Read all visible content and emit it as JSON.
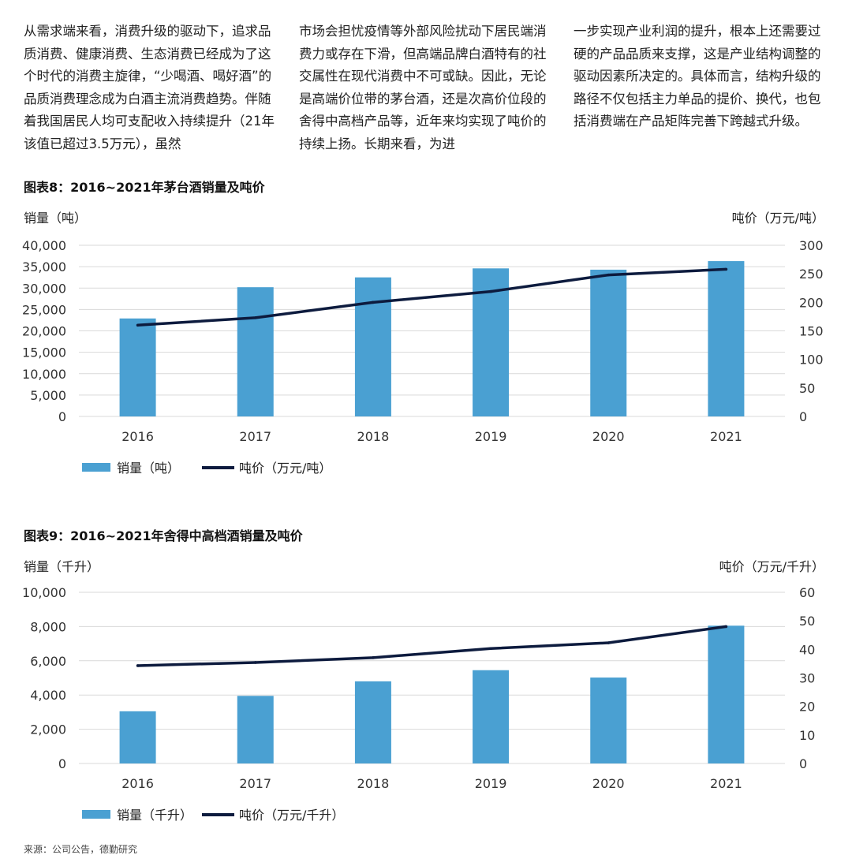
{
  "text_columns": [
    "从需求端来看，消费升级的驱动下，追求品质消费、健康消费、生态消费已经成为了这个时代的消费主旋律，“少喝酒、喝好酒”的品质消费理念成为白酒主流消费趋势。伴随着我国居民人均可支配收入持续提升（21年该值已超过3.5万元），虽然",
    "市场会担忧疫情等外部风险扰动下居民端消费力或存在下滑，但高端品牌白酒特有的社交属性在现代消费中不可或缺。因此，无论是高端价位带的茅台酒，还是次高价位段的舍得中高档产品等，近年来均实现了吨价的持续上扬。长期来看，为进",
    "一步实现产业利润的提升，根本上还需要过硬的产品品质来支撑，这是产业结构调整的驱动因素所决定的。具体而言，结构升级的路径不仅包括主力单品的提价、换代，也包括消费端在产品矩阵完善下跨越式升级。"
  ],
  "colors": {
    "bar": "#4aa0d2",
    "line": "#0d1b3e",
    "grid": "#d9d9d9"
  },
  "chart_data": [
    {
      "type": "bar",
      "title": "图表8：2016~2021年茅台酒销量及吨价",
      "categories": [
        "2016",
        "2017",
        "2018",
        "2019",
        "2020",
        "2021"
      ],
      "series": [
        {
          "name": "销量（吨）",
          "type": "bar",
          "axis": "left",
          "values": [
            22900,
            30200,
            32500,
            34600,
            34300,
            36300
          ]
        },
        {
          "name": "吨价（万元/吨）",
          "type": "line",
          "axis": "right",
          "values": [
            160,
            173,
            200,
            219,
            248,
            258
          ]
        }
      ],
      "ylabel": "销量（吨）",
      "y2label": "吨价（万元/吨）",
      "ylim": [
        0,
        40000
      ],
      "yticks": [
        0,
        5000,
        10000,
        15000,
        20000,
        25000,
        30000,
        35000,
        40000
      ],
      "yticklabels": [
        "0",
        "5,000",
        "10,000",
        "15,000",
        "20,000",
        "25,000",
        "30,000",
        "35,000",
        "40,000"
      ],
      "y2lim": [
        0,
        300
      ],
      "y2ticks": [
        0,
        50,
        100,
        150,
        200,
        250,
        300
      ],
      "y2ticklabels": [
        "0",
        "50",
        "100",
        "150",
        "200",
        "250",
        "300"
      ],
      "legend": [
        "销量（吨）",
        "吨价（万元/吨）"
      ]
    },
    {
      "type": "bar",
      "title": "图表9：2016~2021年舍得中高档酒销量及吨价",
      "categories": [
        "2016",
        "2017",
        "2018",
        "2019",
        "2020",
        "2021"
      ],
      "series": [
        {
          "name": "销量（千升）",
          "type": "bar",
          "axis": "left",
          "values": [
            3050,
            3950,
            4800,
            5450,
            5020,
            8050
          ]
        },
        {
          "name": "吨价（万元/千升）",
          "type": "line",
          "axis": "right",
          "values": [
            34.3,
            35.4,
            37.1,
            40.3,
            42.3,
            48.0
          ]
        }
      ],
      "ylabel": "销量（千升）",
      "y2label": "吨价（万元/千升）",
      "ylim": [
        0,
        10000
      ],
      "yticks": [
        0,
        2000,
        4000,
        6000,
        8000,
        10000
      ],
      "yticklabels": [
        "0",
        "2,000",
        "4,000",
        "6,000",
        "8,000",
        "10,000"
      ],
      "y2lim": [
        0,
        60
      ],
      "y2ticks": [
        0,
        10,
        20,
        30,
        40,
        50,
        60
      ],
      "y2ticklabels": [
        "0",
        "10",
        "20",
        "30",
        "40",
        "50",
        "60"
      ],
      "legend": [
        "销量（千升）",
        "吨价（万元/千升）"
      ]
    }
  ],
  "source": "来源：公司公告，德勤研究"
}
